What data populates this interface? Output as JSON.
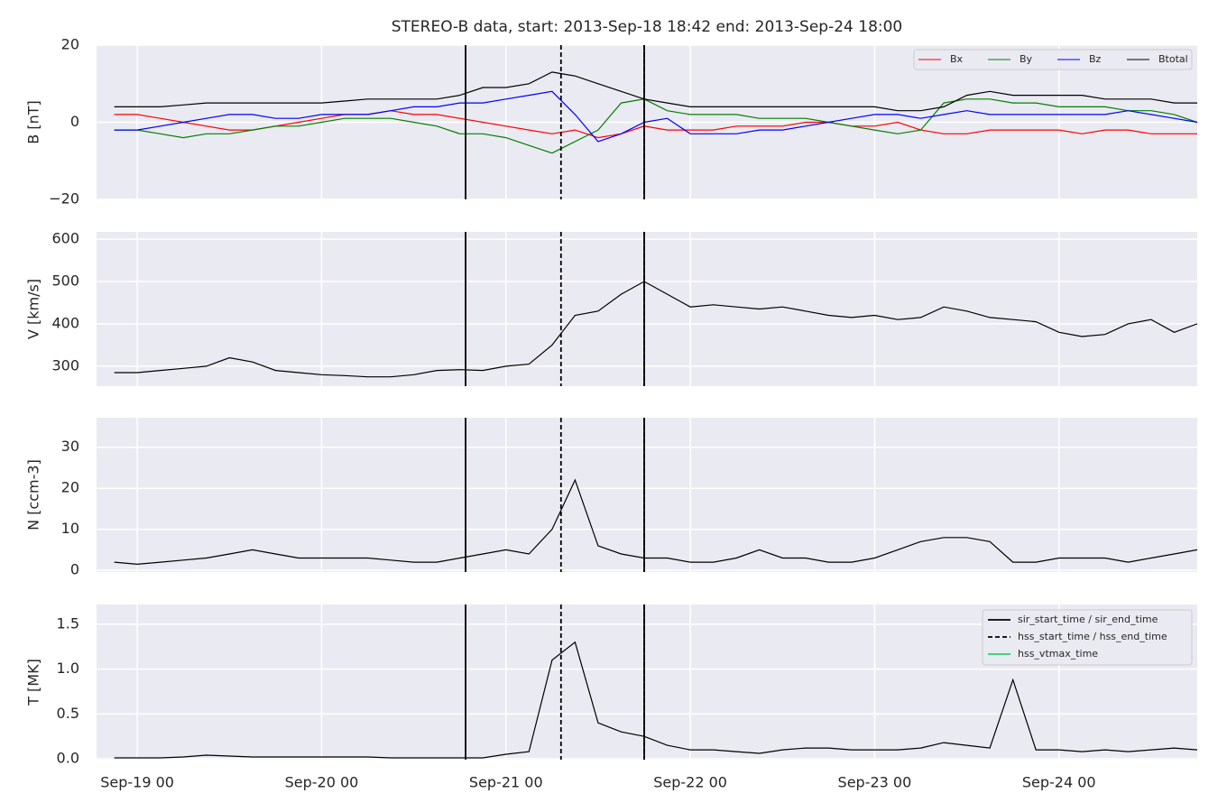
{
  "chart_data": [
    {
      "type": "line",
      "title": "STEREO-B data, start: 2013-Sep-18 18:42  end: 2013-Sep-24 18:00",
      "ylabel": "B [nT]",
      "x": [
        "Sep-18 21",
        "Sep-19 00",
        "Sep-19 03",
        "Sep-19 06",
        "Sep-19 09",
        "Sep-19 12",
        "Sep-19 15",
        "Sep-19 18",
        "Sep-19 21",
        "Sep-20 00",
        "Sep-20 03",
        "Sep-20 06",
        "Sep-20 09",
        "Sep-20 12",
        "Sep-20 15",
        "Sep-20 18",
        "Sep-20 21",
        "Sep-21 00",
        "Sep-21 03",
        "Sep-21 06",
        "Sep-21 09",
        "Sep-21 12",
        "Sep-21 15",
        "Sep-21 18",
        "Sep-21 21",
        "Sep-22 00",
        "Sep-22 03",
        "Sep-22 06",
        "Sep-22 09",
        "Sep-22 12",
        "Sep-22 15",
        "Sep-22 18",
        "Sep-22 21",
        "Sep-23 00",
        "Sep-23 03",
        "Sep-23 06",
        "Sep-23 09",
        "Sep-23 12",
        "Sep-23 15",
        "Sep-23 18",
        "Sep-23 21",
        "Sep-24 00",
        "Sep-24 03",
        "Sep-24 06",
        "Sep-24 09",
        "Sep-24 12",
        "Sep-24 15",
        "Sep-24 18"
      ],
      "series": [
        {
          "name": "Bx",
          "color": "#ff0000",
          "values": [
            2,
            2,
            1,
            0,
            -1,
            -2,
            -2,
            -1,
            0,
            1,
            2,
            2,
            3,
            2,
            2,
            1,
            0,
            -1,
            -2,
            -3,
            -2,
            -4,
            -3,
            -1,
            -2,
            -2,
            -2,
            -1,
            -1,
            -1,
            0,
            0,
            -1,
            -1,
            0,
            -2,
            -3,
            -3,
            -2,
            -2,
            -2,
            -2,
            -3,
            -2,
            -2,
            -3,
            -3,
            -3
          ]
        },
        {
          "name": "By",
          "color": "#008000",
          "values": [
            -2,
            -2,
            -3,
            -4,
            -3,
            -3,
            -2,
            -1,
            -1,
            0,
            1,
            1,
            1,
            0,
            -1,
            -3,
            -3,
            -4,
            -6,
            -8,
            -5,
            -2,
            5,
            6,
            3,
            2,
            2,
            2,
            1,
            1,
            1,
            0,
            -1,
            -2,
            -3,
            -2,
            5,
            6,
            6,
            5,
            5,
            4,
            4,
            4,
            3,
            3,
            2,
            0
          ]
        },
        {
          "name": "Bz",
          "color": "#0000ff",
          "values": [
            -2,
            -2,
            -1,
            0,
            1,
            2,
            2,
            1,
            1,
            2,
            2,
            2,
            3,
            4,
            4,
            5,
            5,
            6,
            7,
            8,
            2,
            -5,
            -3,
            0,
            1,
            -3,
            -3,
            -3,
            -2,
            -2,
            -1,
            0,
            1,
            2,
            2,
            1,
            2,
            3,
            2,
            2,
            2,
            2,
            2,
            2,
            3,
            2,
            1,
            0
          ]
        },
        {
          "name": "Btotal",
          "color": "#000000",
          "values": [
            4,
            4,
            4,
            4.5,
            5,
            5,
            5,
            5,
            5,
            5,
            5.5,
            6,
            6,
            6,
            6,
            7,
            9,
            9,
            10,
            13,
            12,
            10,
            8,
            6,
            5,
            4,
            4,
            4,
            4,
            4,
            4,
            4,
            4,
            4,
            3,
            3,
            4,
            7,
            8,
            7,
            7,
            7,
            7,
            6,
            6,
            6,
            5,
            5
          ]
        }
      ],
      "xlim": [
        "Sep-18 18:42",
        "Sep-24 18:00"
      ],
      "xticks": [
        "Sep-19 00",
        "Sep-20 00",
        "Sep-21 00",
        "Sep-22 00",
        "Sep-23 00",
        "Sep-24 00"
      ],
      "ylim": [
        -20,
        20
      ],
      "yticks": [
        {
          "value": -20,
          "label": "−20"
        },
        0,
        20
      ],
      "grid": true,
      "legend": "upper right"
    },
    {
      "type": "line",
      "ylabel": "V [km/s]",
      "x": [
        "Sep-18 21",
        "Sep-19 00",
        "Sep-19 03",
        "Sep-19 06",
        "Sep-19 09",
        "Sep-19 12",
        "Sep-19 15",
        "Sep-19 18",
        "Sep-19 21",
        "Sep-20 00",
        "Sep-20 03",
        "Sep-20 06",
        "Sep-20 09",
        "Sep-20 12",
        "Sep-20 15",
        "Sep-20 18",
        "Sep-20 21",
        "Sep-21 00",
        "Sep-21 03",
        "Sep-21 06",
        "Sep-21 09",
        "Sep-21 12",
        "Sep-21 15",
        "Sep-21 18",
        "Sep-21 21",
        "Sep-22 00",
        "Sep-22 03",
        "Sep-22 06",
        "Sep-22 09",
        "Sep-22 12",
        "Sep-22 15",
        "Sep-22 18",
        "Sep-22 21",
        "Sep-23 00",
        "Sep-23 03",
        "Sep-23 06",
        "Sep-23 09",
        "Sep-23 12",
        "Sep-23 15",
        "Sep-23 18",
        "Sep-23 21",
        "Sep-24 00",
        "Sep-24 03",
        "Sep-24 06",
        "Sep-24 09",
        "Sep-24 12",
        "Sep-24 15",
        "Sep-24 18"
      ],
      "series": [
        {
          "color": "#000000",
          "values": [
            285,
            285,
            290,
            295,
            300,
            320,
            310,
            290,
            285,
            280,
            278,
            275,
            275,
            280,
            290,
            292,
            290,
            300,
            305,
            350,
            420,
            430,
            470,
            500,
            470,
            440,
            445,
            440,
            435,
            440,
            430,
            420,
            415,
            420,
            410,
            415,
            440,
            430,
            415,
            410,
            405,
            380,
            370,
            375,
            400,
            410,
            380,
            400
          ]
        }
      ],
      "xlim": [
        "Sep-18 18:42",
        "Sep-24 18:00"
      ],
      "xticks": [
        "Sep-19 00",
        "Sep-20 00",
        "Sep-21 00",
        "Sep-22 00",
        "Sep-23 00",
        "Sep-24 00"
      ],
      "ylim": [
        253,
        617
      ],
      "yticks": [
        300,
        400,
        500,
        600
      ],
      "grid": true
    },
    {
      "type": "line",
      "ylabel": "N [ccm-3]",
      "x": [
        "Sep-18 21",
        "Sep-19 00",
        "Sep-19 03",
        "Sep-19 06",
        "Sep-19 09",
        "Sep-19 12",
        "Sep-19 15",
        "Sep-19 18",
        "Sep-19 21",
        "Sep-20 00",
        "Sep-20 03",
        "Sep-20 06",
        "Sep-20 09",
        "Sep-20 12",
        "Sep-20 15",
        "Sep-20 18",
        "Sep-20 21",
        "Sep-21 00",
        "Sep-21 03",
        "Sep-21 06",
        "Sep-21 09",
        "Sep-21 12",
        "Sep-21 15",
        "Sep-21 18",
        "Sep-21 21",
        "Sep-22 00",
        "Sep-22 03",
        "Sep-22 06",
        "Sep-22 09",
        "Sep-22 12",
        "Sep-22 15",
        "Sep-22 18",
        "Sep-22 21",
        "Sep-23 00",
        "Sep-23 03",
        "Sep-23 06",
        "Sep-23 09",
        "Sep-23 12",
        "Sep-23 15",
        "Sep-23 18",
        "Sep-23 21",
        "Sep-24 00",
        "Sep-24 03",
        "Sep-24 06",
        "Sep-24 09",
        "Sep-24 12",
        "Sep-24 15",
        "Sep-24 18"
      ],
      "series": [
        {
          "color": "#000000",
          "values": [
            2,
            1.5,
            2,
            2.5,
            3,
            4,
            5,
            4,
            3,
            3,
            3,
            3,
            2.5,
            2,
            2,
            3,
            4,
            5,
            4,
            10,
            22,
            6,
            4,
            3,
            3,
            2,
            2,
            3,
            5,
            3,
            3,
            2,
            2,
            3,
            5,
            7,
            8,
            8,
            7,
            2,
            2,
            3,
            3,
            3,
            2,
            3,
            4,
            5
          ]
        }
      ],
      "xlim": [
        "Sep-18 18:42",
        "Sep-24 18:00"
      ],
      "xticks": [
        "Sep-19 00",
        "Sep-20 00",
        "Sep-21 00",
        "Sep-22 00",
        "Sep-23 00",
        "Sep-24 00"
      ],
      "ylim": [
        -0.4,
        37.2
      ],
      "yticks": [
        0,
        10,
        20,
        30
      ],
      "grid": true
    },
    {
      "type": "line",
      "ylabel": "T [MK]",
      "x": [
        "Sep-18 21",
        "Sep-19 00",
        "Sep-19 03",
        "Sep-19 06",
        "Sep-19 09",
        "Sep-19 12",
        "Sep-19 15",
        "Sep-19 18",
        "Sep-19 21",
        "Sep-20 00",
        "Sep-20 03",
        "Sep-20 06",
        "Sep-20 09",
        "Sep-20 12",
        "Sep-20 15",
        "Sep-20 18",
        "Sep-20 21",
        "Sep-21 00",
        "Sep-21 03",
        "Sep-21 06",
        "Sep-21 09",
        "Sep-21 12",
        "Sep-21 15",
        "Sep-21 18",
        "Sep-21 21",
        "Sep-22 00",
        "Sep-22 03",
        "Sep-22 06",
        "Sep-22 09",
        "Sep-22 12",
        "Sep-22 15",
        "Sep-22 18",
        "Sep-22 21",
        "Sep-23 00",
        "Sep-23 03",
        "Sep-23 06",
        "Sep-23 09",
        "Sep-23 12",
        "Sep-23 15",
        "Sep-23 18",
        "Sep-23 21",
        "Sep-24 00",
        "Sep-24 03",
        "Sep-24 06",
        "Sep-24 09",
        "Sep-24 12",
        "Sep-24 15",
        "Sep-24 18"
      ],
      "series": [
        {
          "color": "#000000",
          "values": [
            0.01,
            0.01,
            0.01,
            0.02,
            0.04,
            0.03,
            0.02,
            0.02,
            0.02,
            0.02,
            0.02,
            0.02,
            0.01,
            0.01,
            0.01,
            0.01,
            0.01,
            0.05,
            0.08,
            1.1,
            1.3,
            0.4,
            0.3,
            0.25,
            0.15,
            0.1,
            0.1,
            0.08,
            0.06,
            0.1,
            0.12,
            0.12,
            0.1,
            0.1,
            0.1,
            0.12,
            0.18,
            0.15,
            0.12,
            0.88,
            0.1,
            0.1,
            0.08,
            0.1,
            0.08,
            0.1,
            0.12,
            0.1
          ]
        }
      ],
      "xlim": [
        "Sep-18 18:42",
        "Sep-24 18:00"
      ],
      "xticks": [
        "Sep-19 00",
        "Sep-20 00",
        "Sep-21 00",
        "Sep-22 00",
        "Sep-23 00",
        "Sep-24 00"
      ],
      "ylim": [
        -0.01,
        1.72
      ],
      "yticks": [
        {
          "value": 0,
          "label": "0.0"
        },
        0.5,
        {
          "value": 1,
          "label": "1.0"
        },
        1.5
      ],
      "grid": true,
      "legend": "upper right",
      "markers": [
        {
          "name": "sir_start_time / sir_end_time",
          "color": "#000000",
          "linestyle": "solid",
          "times": [
            "Sep-20 18:45",
            "Sep-21 18:00"
          ]
        },
        {
          "name": "hss_start_time / hss_end_time",
          "color": "#000000",
          "linestyle": "dashed",
          "times": [
            "Sep-21 07:10",
            "Sep-21 18:00"
          ]
        },
        {
          "name": "hss_vtmax_time",
          "color": "#2ecc71",
          "linestyle": "solid",
          "times": []
        }
      ]
    }
  ]
}
